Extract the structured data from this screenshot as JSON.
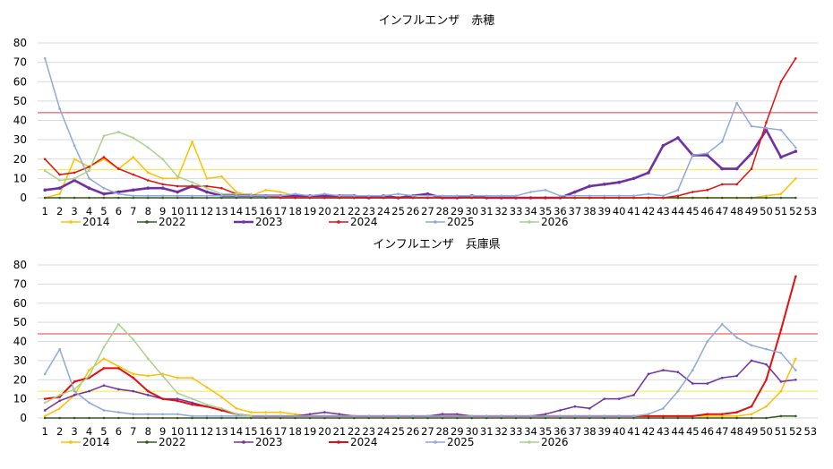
{
  "chart_data": [
    {
      "type": "line",
      "title": "インフルエンザ　赤穂",
      "xlabel": "",
      "ylabel": "",
      "ylim": [
        0,
        80
      ],
      "yticks": [
        0,
        10,
        20,
        30,
        40,
        50,
        60,
        70,
        80
      ],
      "x": [
        "1",
        "2",
        "3",
        "4",
        "5",
        "6",
        "7",
        "8",
        "9",
        "10",
        "11",
        "12",
        "13",
        "14",
        "15",
        "16",
        "17",
        "18",
        "19",
        "20",
        "21",
        "22",
        "23",
        "24",
        "25",
        "26",
        "27",
        "28",
        "29",
        "30",
        "31",
        "32",
        "33",
        "34",
        "35",
        "36",
        "37",
        "38",
        "39",
        "40",
        "41",
        "42",
        "43",
        "44",
        "45",
        "46",
        "47",
        "48",
        "49",
        "50",
        "51",
        "52",
        "53"
      ],
      "grid": true,
      "legend_position": "bottom",
      "reference_lines": [
        {
          "value": 44,
          "color": "#e03c3c"
        },
        {
          "value": 14.5,
          "color": "#f5e642"
        }
      ],
      "series": [
        {
          "name": "2014",
          "color": "#ffc000",
          "width": 1.5,
          "values": [
            0,
            2,
            20,
            16,
            20,
            15,
            21,
            13,
            10,
            10,
            29,
            10,
            11,
            3,
            1,
            4,
            3,
            1,
            1,
            1,
            0,
            0,
            0,
            0,
            0,
            0,
            0,
            0,
            0,
            0,
            0,
            0,
            0,
            0,
            0,
            0,
            0,
            0,
            0,
            0,
            0,
            0,
            0,
            0,
            0,
            0,
            0,
            0,
            0,
            1,
            2,
            10,
            null
          ]
        },
        {
          "name": "2022",
          "color": "#375623",
          "width": 1.5,
          "values": [
            0,
            0,
            0,
            0,
            0,
            0,
            0,
            0,
            0,
            0,
            0,
            0,
            0,
            0,
            0,
            0,
            0,
            0,
            0,
            0,
            0,
            0,
            0,
            0,
            0,
            0,
            0,
            0,
            0,
            0,
            0,
            0,
            0,
            0,
            0,
            0,
            0,
            0,
            0,
            0,
            0,
            0,
            0,
            0,
            0,
            0,
            0,
            0,
            0,
            0,
            0,
            0,
            null
          ]
        },
        {
          "name": "2023",
          "color": "#7030a0",
          "width": 2.6,
          "values": [
            4,
            5,
            9,
            5,
            2,
            3,
            4,
            5,
            5,
            3,
            6,
            3,
            1,
            1,
            1,
            1,
            1,
            1,
            1,
            1,
            1,
            1,
            0,
            1,
            0,
            1,
            2,
            0,
            0,
            1,
            0,
            0,
            0,
            0,
            0,
            0,
            3,
            6,
            7,
            8,
            10,
            13,
            27,
            31,
            22,
            22,
            15,
            15,
            23,
            35,
            21,
            24,
            null
          ]
        },
        {
          "name": "2024",
          "color": "#e01010",
          "width": 1.5,
          "values": [
            20,
            12,
            13,
            16,
            21,
            15,
            12,
            9,
            7,
            6,
            6,
            6,
            5,
            2,
            1,
            1,
            0,
            0,
            0,
            0,
            0,
            0,
            0,
            0,
            0,
            0,
            0,
            0,
            0,
            0,
            0,
            0,
            0,
            0,
            0,
            0,
            0,
            0,
            0,
            0,
            0,
            0,
            0,
            1,
            3,
            4,
            7,
            7,
            15,
            39,
            60,
            72,
            null
          ]
        },
        {
          "name": "2025",
          "color": "#8ea9db",
          "width": 1.5,
          "values": [
            72,
            46,
            27,
            10,
            5,
            2,
            1,
            1,
            1,
            1,
            1,
            1,
            1,
            1,
            1,
            1,
            1,
            2,
            1,
            2,
            1,
            1,
            1,
            1,
            2,
            1,
            1,
            1,
            1,
            1,
            1,
            1,
            1,
            3,
            4,
            1,
            1,
            1,
            1,
            1,
            1,
            2,
            1,
            4,
            22,
            23,
            29,
            49,
            37,
            36,
            35,
            26,
            null
          ]
        },
        {
          "name": "2026",
          "color": "#a9d18e",
          "width": 1.5,
          "values": [
            14,
            9,
            10,
            14,
            32,
            34,
            31,
            26,
            20,
            11,
            8,
            5,
            2,
            2,
            2,
            null,
            null,
            null,
            null,
            null,
            null,
            null,
            null,
            null,
            null,
            null,
            null,
            null,
            null,
            null,
            null,
            null,
            null,
            null,
            null,
            null,
            null,
            null,
            null,
            null,
            null,
            null,
            null,
            null,
            null,
            null,
            null,
            null,
            null,
            null,
            null,
            null,
            null
          ]
        }
      ]
    },
    {
      "type": "line",
      "title": "インフルエンザ　兵庫県",
      "xlabel": "",
      "ylabel": "",
      "ylim": [
        0,
        80
      ],
      "yticks": [
        0,
        10,
        20,
        30,
        40,
        50,
        60,
        70,
        80
      ],
      "x": [
        "1",
        "2",
        "3",
        "4",
        "5",
        "6",
        "7",
        "8",
        "9",
        "10",
        "11",
        "12",
        "13",
        "14",
        "15",
        "16",
        "17",
        "18",
        "19",
        "20",
        "21",
        "22",
        "23",
        "24",
        "25",
        "26",
        "27",
        "28",
        "29",
        "30",
        "31",
        "32",
        "33",
        "34",
        "35",
        "36",
        "37",
        "38",
        "39",
        "40",
        "41",
        "42",
        "43",
        "44",
        "45",
        "46",
        "47",
        "48",
        "49",
        "50",
        "51",
        "52",
        "53"
      ],
      "grid": true,
      "legend_position": "bottom",
      "reference_lines": [
        {
          "value": 44,
          "color": "#e03c3c"
        },
        {
          "value": 14,
          "color": "#f5e642"
        }
      ],
      "series": [
        {
          "name": "2014",
          "color": "#ffc000",
          "width": 1.5,
          "values": [
            1,
            5,
            12,
            25,
            31,
            27,
            23,
            22,
            23,
            21,
            21,
            16,
            11,
            5,
            3,
            3,
            3,
            2,
            1,
            1,
            1,
            1,
            1,
            1,
            1,
            1,
            1,
            1,
            1,
            1,
            1,
            1,
            1,
            1,
            1,
            1,
            1,
            1,
            1,
            1,
            1,
            1,
            1,
            1,
            1,
            1,
            1,
            1,
            2,
            6,
            14,
            31,
            null
          ]
        },
        {
          "name": "2022",
          "color": "#375623",
          "width": 1.5,
          "values": [
            0,
            0,
            0,
            0,
            0,
            0,
            0,
            0,
            0,
            0,
            0,
            0,
            0,
            0,
            0,
            0,
            0,
            0,
            0,
            0,
            0,
            0,
            0,
            0,
            0,
            0,
            0,
            0,
            0,
            0,
            0,
            0,
            0,
            0,
            0,
            0,
            0,
            0,
            0,
            0,
            0,
            0,
            0,
            0,
            0,
            0,
            0,
            0,
            0,
            0,
            1,
            1,
            null
          ]
        },
        {
          "name": "2023",
          "color": "#7030a0",
          "width": 1.5,
          "values": [
            4,
            9,
            12,
            14,
            17,
            15,
            14,
            12,
            10,
            10,
            8,
            6,
            4,
            2,
            1,
            1,
            1,
            1,
            2,
            3,
            2,
            1,
            1,
            1,
            1,
            1,
            1,
            2,
            2,
            1,
            1,
            1,
            1,
            1,
            2,
            4,
            6,
            5,
            10,
            10,
            12,
            23,
            25,
            24,
            18,
            18,
            21,
            22,
            30,
            28,
            19,
            20,
            null
          ]
        },
        {
          "name": "2024",
          "color": "#e01010",
          "width": 2.0,
          "values": [
            10,
            11,
            19,
            21,
            26,
            26,
            21,
            14,
            10,
            9,
            7,
            6,
            4,
            2,
            1,
            1,
            1,
            1,
            1,
            1,
            1,
            1,
            1,
            1,
            1,
            1,
            1,
            1,
            1,
            1,
            1,
            1,
            1,
            1,
            1,
            1,
            1,
            1,
            1,
            1,
            1,
            1,
            1,
            1,
            1,
            2,
            2,
            3,
            6,
            20,
            46,
            74,
            null
          ]
        },
        {
          "name": "2025",
          "color": "#8ea9db",
          "width": 1.5,
          "values": [
            23,
            36,
            14,
            8,
            4,
            3,
            2,
            2,
            2,
            2,
            1,
            1,
            1,
            1,
            1,
            1,
            1,
            1,
            1,
            1,
            1,
            1,
            1,
            1,
            1,
            1,
            1,
            1,
            1,
            1,
            1,
            1,
            1,
            1,
            1,
            1,
            1,
            1,
            1,
            1,
            1,
            2,
            5,
            14,
            25,
            40,
            49,
            42,
            38,
            36,
            34,
            25,
            null
          ]
        },
        {
          "name": "2026",
          "color": "#a9d18e",
          "width": 1.5,
          "values": [
            8,
            12,
            15,
            22,
            37,
            49,
            41,
            31,
            22,
            13,
            10,
            7,
            5,
            2,
            1,
            null,
            null,
            null,
            null,
            null,
            null,
            null,
            null,
            null,
            null,
            null,
            null,
            null,
            null,
            null,
            null,
            null,
            null,
            null,
            null,
            null,
            null,
            null,
            null,
            null,
            null,
            null,
            null,
            null,
            null,
            null,
            null,
            null,
            null,
            null,
            null,
            null,
            null
          ]
        }
      ]
    }
  ]
}
